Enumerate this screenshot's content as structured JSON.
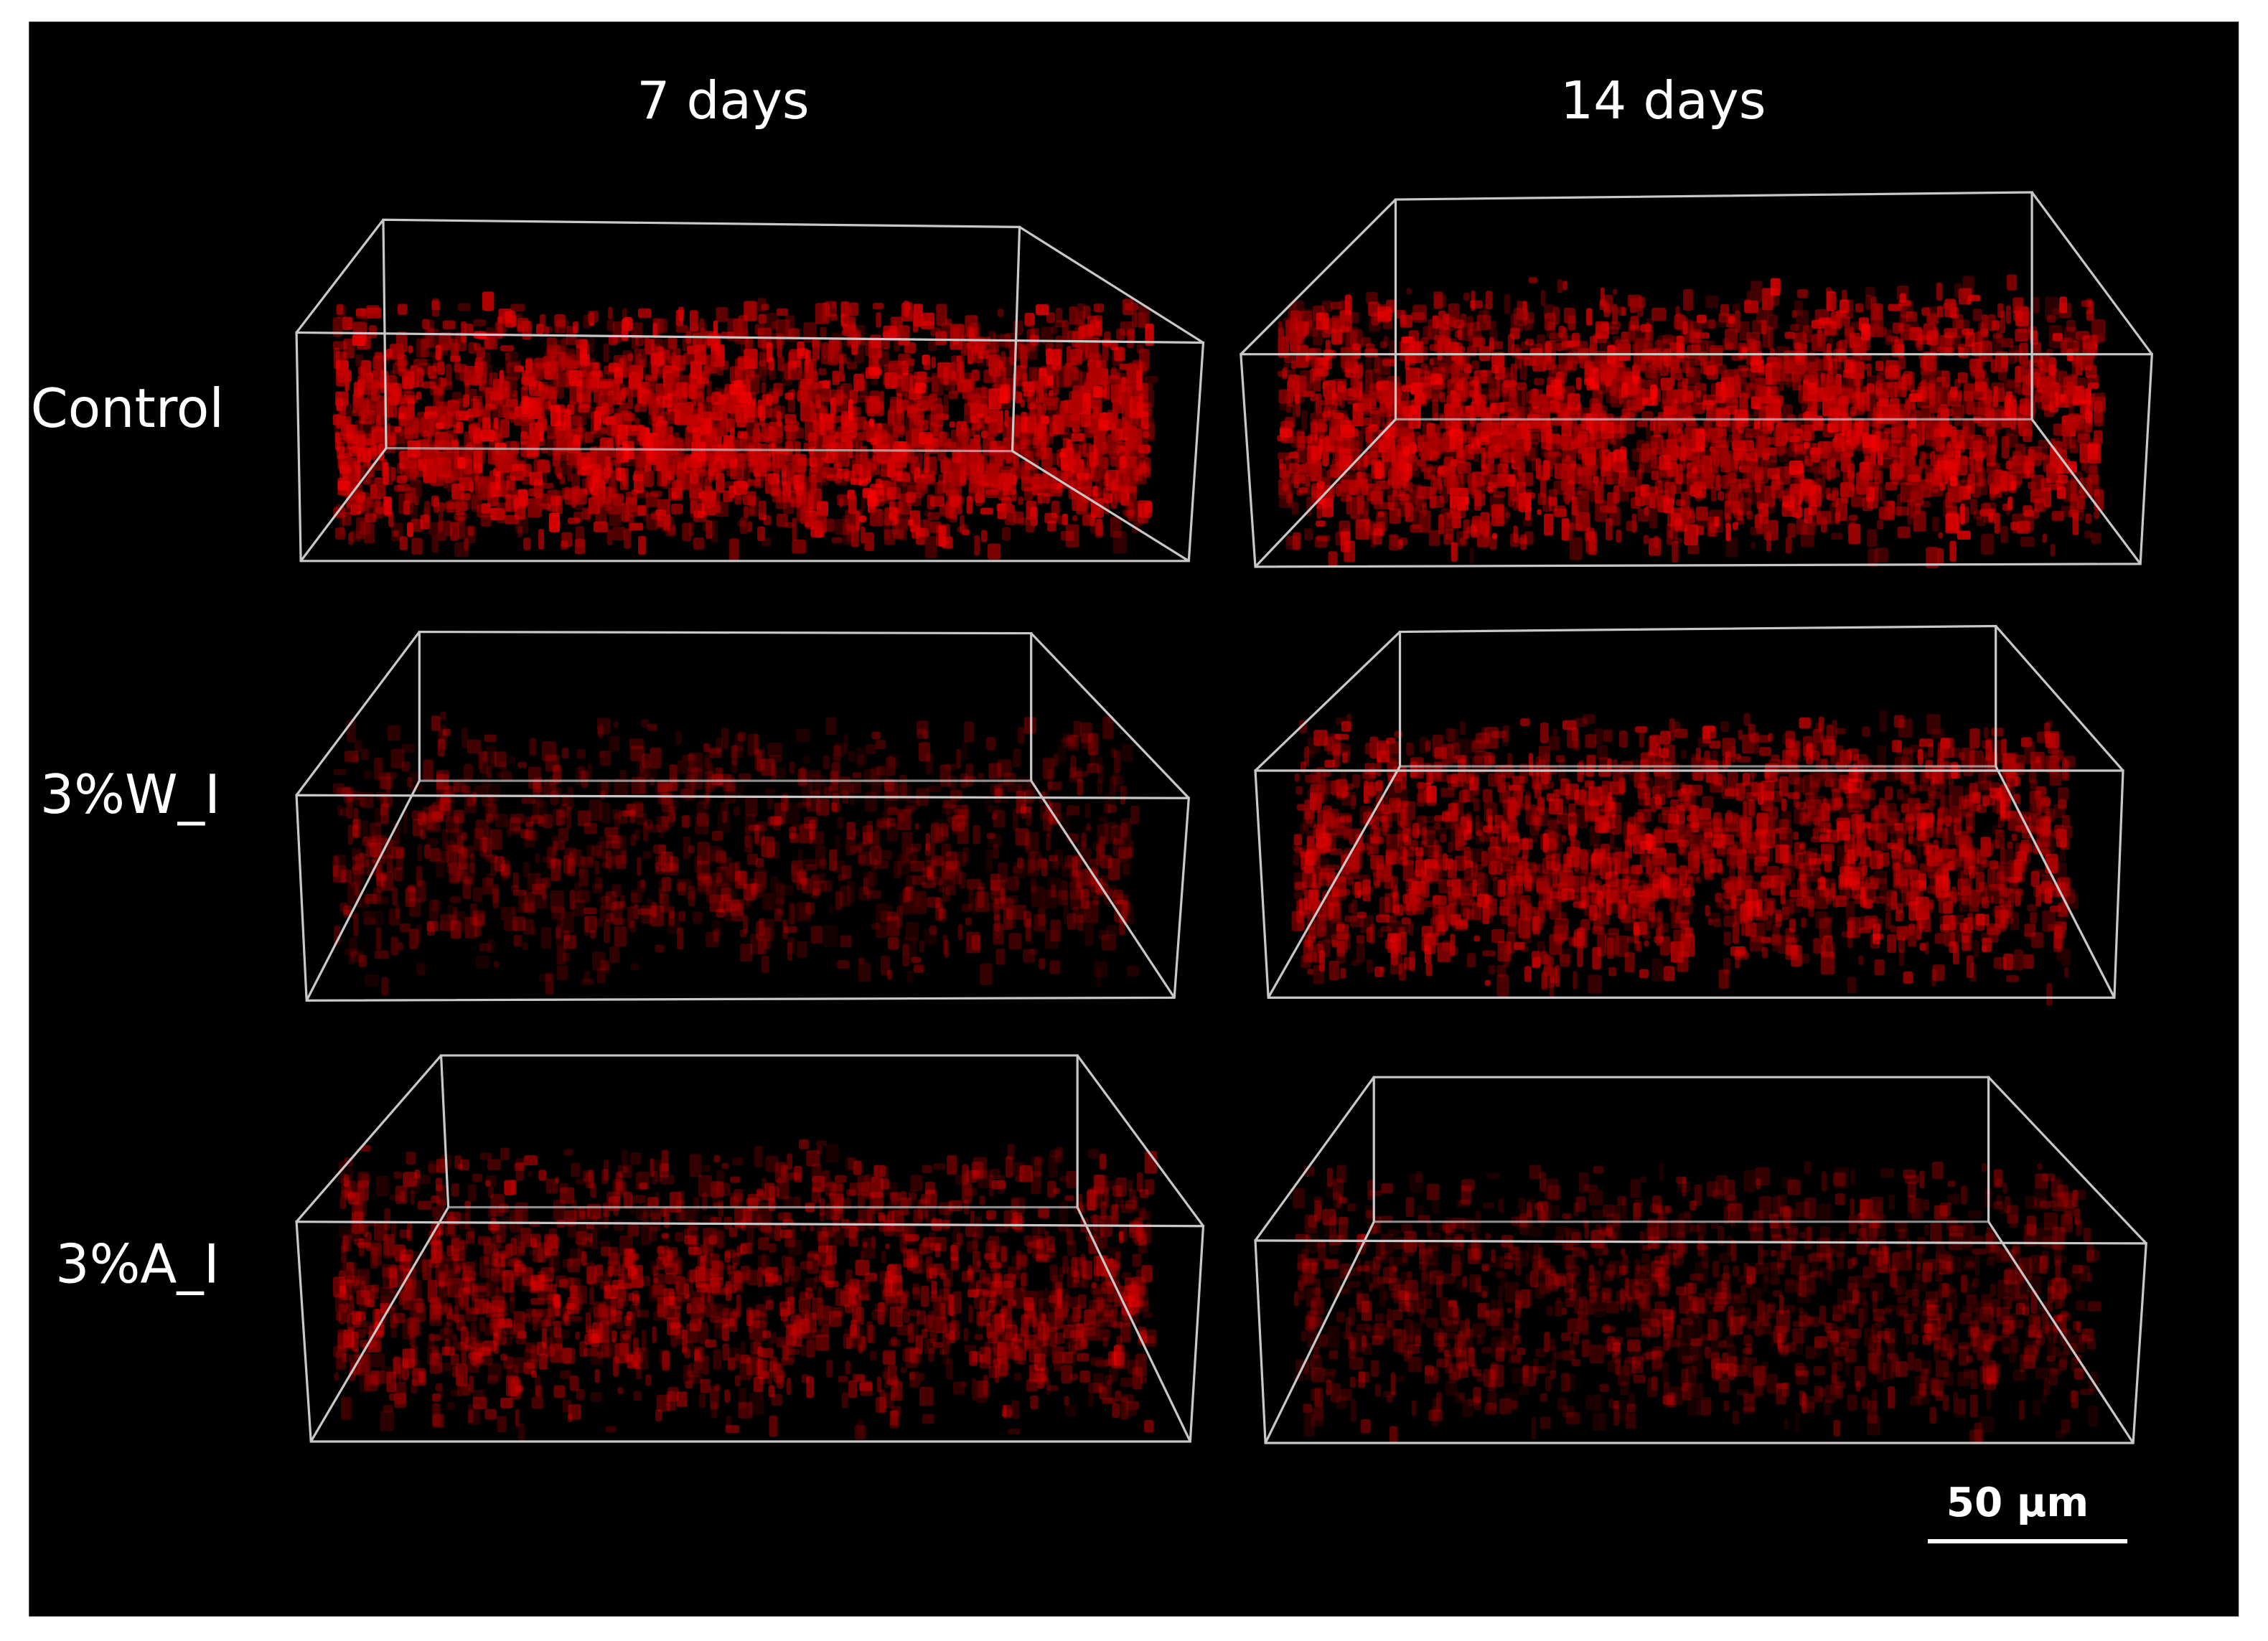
{
  "columns": [
    "7 days",
    "14 days"
  ],
  "rows": [
    "Control",
    "3%W_I",
    "3%A_I"
  ],
  "scale_bar": {
    "label": "50 µm"
  }
}
